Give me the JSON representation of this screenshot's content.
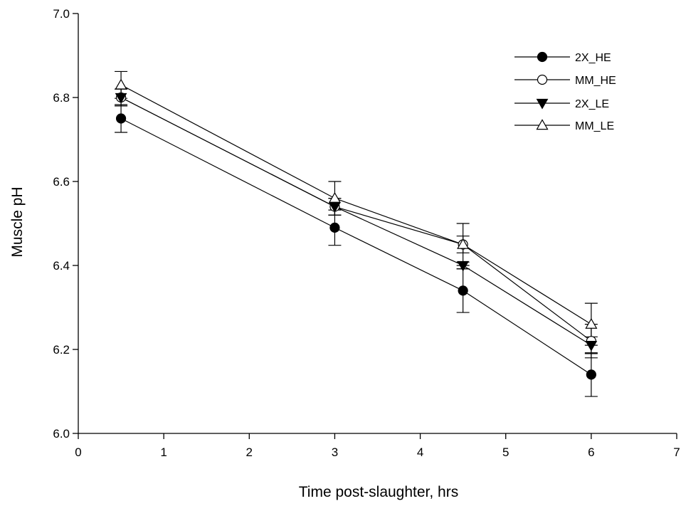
{
  "chart_data": {
    "type": "line",
    "xlabel": "Time post-slaughter, hrs",
    "ylabel": "Muscle pH",
    "xlim": [
      0,
      7
    ],
    "ylim": [
      6.0,
      7.0
    ],
    "x_ticks": [
      "0",
      "1",
      "2",
      "3",
      "4",
      "5",
      "6",
      "7"
    ],
    "y_ticks": [
      "6.0",
      "6.2",
      "6.4",
      "6.6",
      "6.8",
      "7.0"
    ],
    "grid": false,
    "legend_position": "top-right",
    "x": [
      0.5,
      3,
      4.5,
      6
    ],
    "series": [
      {
        "name": "2X_HE",
        "marker": "filled-circle",
        "values": [
          6.75,
          6.49,
          6.34,
          6.14
        ],
        "errors": [
          0.033,
          0.042,
          0.052,
          0.052
        ]
      },
      {
        "name": "MM_HE",
        "marker": "open-circle",
        "values": [
          6.8,
          6.54,
          6.45,
          6.22
        ],
        "errors": [
          0.02,
          0.02,
          0.02,
          0.04
        ]
      },
      {
        "name": "2X_LE",
        "marker": "filled-triangle-down",
        "values": [
          6.8,
          6.54,
          6.4,
          6.21
        ],
        "errors": [
          0.02,
          0.02,
          0.008,
          0.02
        ]
      },
      {
        "name": "MM_LE",
        "marker": "open-triangle-up",
        "values": [
          6.83,
          6.56,
          6.45,
          6.26
        ],
        "errors": [
          0.032,
          0.04,
          0.05,
          0.05
        ]
      }
    ]
  }
}
